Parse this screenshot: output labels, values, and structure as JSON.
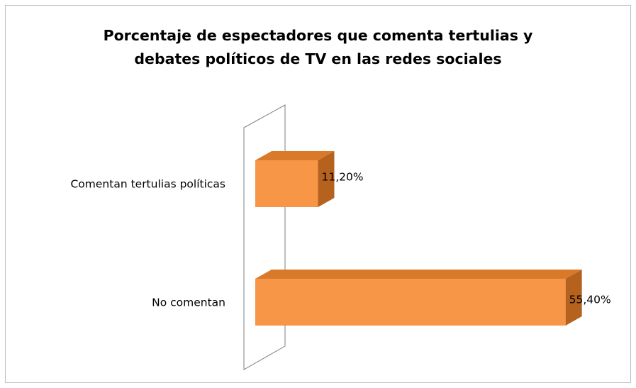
{
  "chart_data": {
    "type": "bar",
    "orientation": "horizontal",
    "style": "3d",
    "title_lines": [
      "Porcentaje de espectadores que comenta tertulias y",
      "debates políticos de TV en las redes sociales"
    ],
    "categories": [
      "Comentan tertulias políticas",
      "No comentan"
    ],
    "values": [
      11.2,
      55.4
    ],
    "data_labels": [
      "11,20%",
      "55,40%"
    ],
    "xlabel": "",
    "ylabel": "",
    "xlim": [
      0,
      60
    ],
    "grid": false,
    "legend": "none",
    "colors": {
      "bar_front": "#f79646",
      "bar_top": "#d97a2a",
      "bar_side": "#b5621f",
      "wall_stroke": "#7f7f7f",
      "frame_border": "#bfbfbf"
    }
  }
}
